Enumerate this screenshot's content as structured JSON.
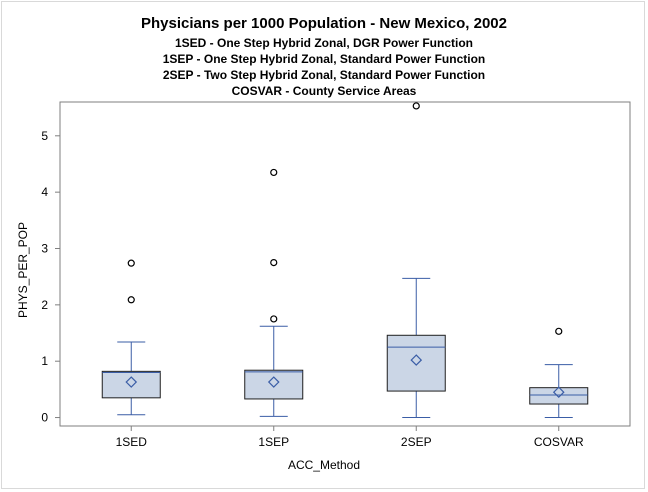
{
  "chart_data": {
    "type": "box",
    "title": "Physicians per 1000 Population - New Mexico, 2002",
    "subtitles": [
      "1SED - One Step Hybrid Zonal, DGR Power Function",
      "1SEP - One Step Hybrid Zonal, Standard Power Function",
      "2SEP - Two Step Hybrid Zonal, Standard Power Function",
      "COSVAR - County Service Areas"
    ],
    "xlabel": "ACC_Method",
    "ylabel": "PHYS_PER_POP",
    "ylim": [
      -0.15,
      5.6
    ],
    "yticks": [
      0,
      1,
      2,
      3,
      4,
      5
    ],
    "categories": [
      "1SED",
      "1SEP",
      "2SEP",
      "COSVAR"
    ],
    "boxes": [
      {
        "category": "1SED",
        "whisker_low": 0.05,
        "q1": 0.35,
        "median": 0.8,
        "q3": 0.82,
        "whisker_high": 1.34,
        "mean": 0.63,
        "outliers": [
          2.09,
          2.74
        ]
      },
      {
        "category": "1SEP",
        "whisker_low": 0.02,
        "q1": 0.33,
        "median": 0.81,
        "q3": 0.84,
        "whisker_high": 1.62,
        "mean": 0.63,
        "outliers": [
          1.75,
          2.75,
          4.35
        ]
      },
      {
        "category": "2SEP",
        "whisker_low": 0.0,
        "q1": 0.47,
        "median": 1.25,
        "q3": 1.46,
        "whisker_high": 2.47,
        "mean": 1.02,
        "outliers": [
          5.53
        ]
      },
      {
        "category": "COSVAR",
        "whisker_low": 0.0,
        "q1": 0.24,
        "median": 0.4,
        "q3": 0.53,
        "whisker_high": 0.94,
        "mean": 0.45,
        "outliers": [
          1.53
        ]
      }
    ],
    "grid": false,
    "colors": {
      "box_fill": "#cbd6e6",
      "box_stroke": "#1f1f1f",
      "whisker": "#3a5da6",
      "median": "#3a5da6",
      "mean_marker": "#3a5da6",
      "outlier": "#000000",
      "axis": "#7f7f7f"
    }
  }
}
